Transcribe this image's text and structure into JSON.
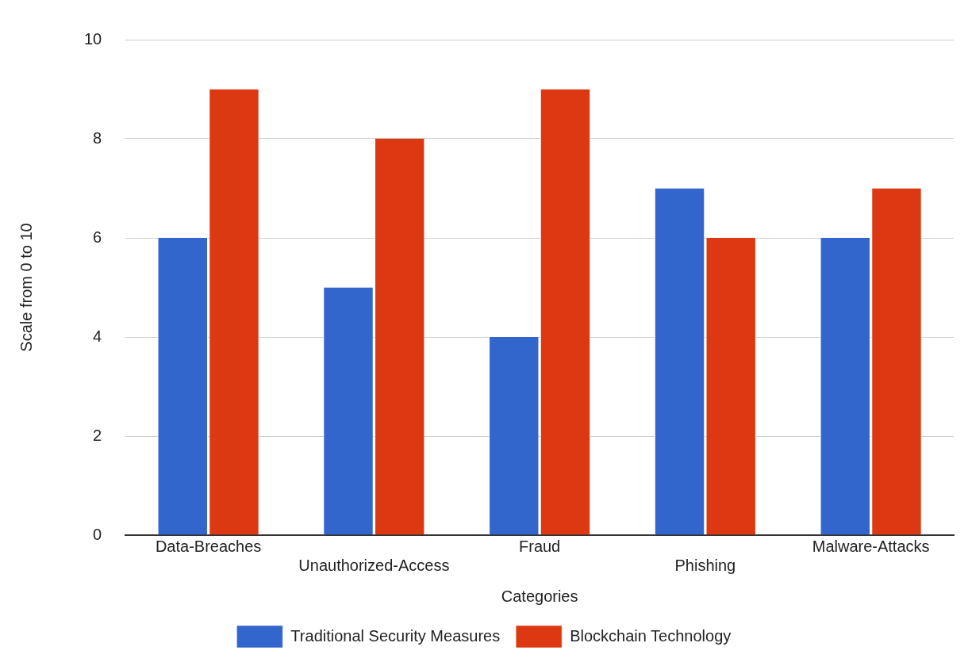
{
  "chart_data": {
    "type": "bar",
    "xlabel": "Categories",
    "ylabel": "Scale from 0 to 10",
    "categories": [
      "Data-Breaches",
      "Unauthorized-Access",
      "Fraud",
      "Phishing",
      "Malware-Attacks"
    ],
    "series": [
      {
        "name": "Traditional Security Measures",
        "color": "#3366cc",
        "values": [
          6,
          5,
          4,
          7,
          6
        ]
      },
      {
        "name": "Blockchain Technology",
        "color": "#dc3912",
        "values": [
          9,
          8,
          9,
          6,
          7
        ]
      }
    ],
    "ylim": [
      0,
      10
    ],
    "yticks": [
      0,
      2,
      4,
      6,
      8,
      10
    ],
    "grid": "y",
    "legend": "bottom"
  }
}
